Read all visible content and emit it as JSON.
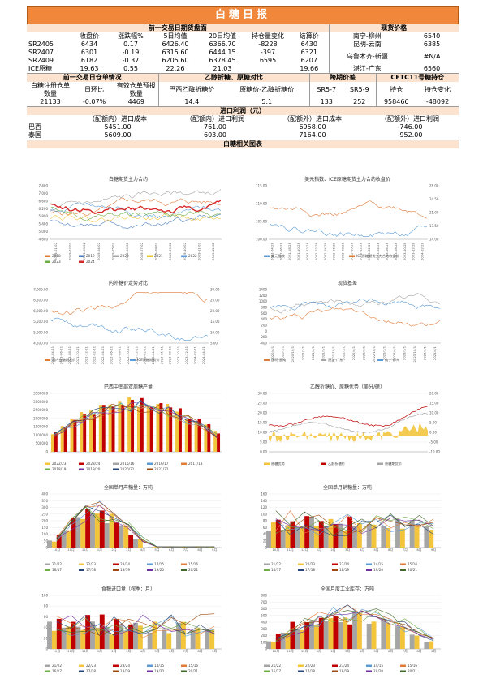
{
  "title": "白糖日报",
  "futures": {
    "header": "前一交易日期货盘面",
    "cols": [
      "收盘价",
      "涨跌幅%",
      "5日均值",
      "20日均值",
      "持仓量变化",
      "结算价"
    ],
    "rows": [
      {
        "name": "SR2405",
        "v": [
          "6434",
          "0.17",
          "6426.40",
          "6366.70",
          "-8228",
          "6430"
        ]
      },
      {
        "name": "SR2407",
        "v": [
          "6301",
          "-0.19",
          "6315.60",
          "6444.15",
          "-397",
          "6321"
        ]
      },
      {
        "name": "SR2409",
        "v": [
          "6182",
          "-0.37",
          "6205.60",
          "6378.45",
          "6595",
          "6207"
        ]
      },
      {
        "name": "ICE原糖",
        "v": [
          "19.63",
          "0.55",
          "22.26",
          "21.03",
          "",
          "19.66"
        ]
      }
    ]
  },
  "spot": {
    "header": "现货价格",
    "rows": [
      {
        "name": "南宁-柳州",
        "value": "6540"
      },
      {
        "name": "昆明-云南",
        "value": "6385"
      },
      {
        "name": "乌鲁木齐-新疆",
        "value": "#N/A"
      },
      {
        "name": "湛江-广东",
        "value": "6560"
      }
    ]
  },
  "warehouse": {
    "header": "前一交易日仓单情况",
    "cols": [
      "白糖注册仓单数量",
      "日环比",
      "有效仓单预报数量"
    ],
    "values": [
      "21133",
      "-0.07%",
      "4469"
    ]
  },
  "ethanol": {
    "header": "乙醇折糖、原糖对比",
    "cols": [
      "巴西乙醇折糖价",
      "原糖价-乙醇折糖价"
    ],
    "values": [
      "14.4",
      "5.1"
    ]
  },
  "spread": {
    "header": "跨期价差",
    "cols": [
      "SR5-7",
      "SR5-9"
    ],
    "values": [
      "133",
      "252"
    ]
  },
  "cftc": {
    "header": "CFTC11号糖持仓",
    "cols": [
      "持仓",
      "持仓变化"
    ],
    "values": [
      "958466",
      "-48092"
    ]
  },
  "import": {
    "header": "进口利润（元）",
    "cols": [
      "（配额内）进口成本",
      "（配额内）进口利润",
      "（配额外）进口成本",
      "（配额外）进口利润"
    ],
    "rows": [
      {
        "name": "巴西",
        "v": [
          "5451.00",
          "761.00",
          "6958.00",
          "-746.00"
        ]
      },
      {
        "name": "泰国",
        "v": [
          "5609.00",
          "603.00",
          "7164.00",
          "-952.00"
        ]
      }
    ]
  },
  "charts_header": "白糖相关图表",
  "chart_data": [
    {
      "type": "line",
      "title": "白糖期货主力合约",
      "ylim": [
        4600,
        7400
      ],
      "yticks": [
        "7,400",
        "7,000",
        "6,600",
        "6,200",
        "5,800",
        "5,400",
        "5,000",
        "4,600"
      ],
      "xticks": [
        "2019-01-02",
        "2019-02-02",
        "2019-03-02",
        "2019-04-02",
        "2019-05-02",
        "2019-06-02",
        "2019-07-02",
        "2019-08-02",
        "2019-09-02",
        "2019-10-02",
        "2019-11-02",
        "2019-12-02"
      ],
      "legend": [
        "2018",
        "2019",
        "2020",
        "2021",
        "2022",
        "2023",
        "2024"
      ],
      "colors": [
        "#e07b39",
        "#4e7fc0",
        "#a5a5a5",
        "#f2c53d",
        "#5b9bd5",
        "#70ad47",
        "#d62728"
      ]
    },
    {
      "type": "line",
      "title": "美元指数、ICE原糖期货主力合约收盘价",
      "yticks_left": [
        "115.00",
        "110.00",
        "105.00",
        "100.00"
      ],
      "yticks_right": [
        "28.00",
        "24.50",
        "21.00",
        "17.50",
        "14.00"
      ],
      "xticks": [
        "2021-04-28",
        "2021-06-28",
        "2021-08-28",
        "2021-10-28",
        "2021-12-28",
        "2022-02-28",
        "2022-04-28",
        "2022-06-28",
        "2022-08-28",
        "2022-10-28",
        "2022-12-28",
        "2023-02-28",
        "2023-04-28",
        "2023-06-28",
        "2023-08-28",
        "2023-10-28",
        "2023-12-28",
        "2024-02-28"
      ],
      "legend": [
        "美元指数",
        "ICE原糖期货主力合约收盘价"
      ],
      "colors": [
        "#5b9bd5",
        "#e07b39"
      ]
    },
    {
      "type": "line",
      "title": "内外糖价走势对比",
      "yticks_left": [
        "7,000.00",
        "6,500.00",
        "6,000.00",
        "5,500.00",
        "5,000.00",
        "4,500.00"
      ],
      "yticks_right": [
        "30.00",
        "25.00",
        "20.00",
        "15.00",
        "10.00",
        "5.00"
      ],
      "xticks": [
        "2021-04-21",
        "2021-06-21",
        "2021-08-21",
        "2021-10-21",
        "2021-12-21",
        "2022-02-21",
        "2022-04-21",
        "2022-06-21",
        "2022-08-21",
        "2022-10-21",
        "2022-12-21",
        "2023-02-21",
        "2023-04-21",
        "2023-06-21",
        "2023-08-21",
        "2023-10-21",
        "2023-12-21",
        "2024-02-21",
        "2024-04-21"
      ],
      "legend": [
        "国内白糖期货价",
        "ICE原糖期货价"
      ],
      "colors": [
        "#e07b39",
        "#5b9bd5"
      ]
    },
    {
      "type": "line",
      "title": "现货基差",
      "yticks": [
        "1400",
        "1200",
        "1000",
        "800",
        "600",
        "400",
        "200",
        "0",
        "-200",
        "-400"
      ],
      "xticks": [
        "2020/4/1",
        "2020/7/1",
        "2020/10/1",
        "2021/1/1",
        "2021/4/1",
        "2021/7/1",
        "2021/10/1",
        "2022/1/1",
        "2022/4/1",
        "2022/7/1",
        "2022/10/1",
        "2023/1/1",
        "2023/4/1",
        "2023/7/1",
        "2023/10/1",
        "2024/1/1",
        "2024/4/1"
      ],
      "legend": [
        "昆明-云南",
        "湛江-广东",
        "南宁-柳州"
      ],
      "colors": [
        "#e07b39",
        "#a5a5a5",
        "#5b9bd5"
      ]
    },
    {
      "type": "bar",
      "title": "巴西中南部双周糖产量",
      "yticks": [
        "3500000",
        "3000000",
        "2500000",
        "2000000",
        "1500000",
        "1000000",
        "500000",
        "0"
      ],
      "legend": [
        "2022/23",
        "2023/24",
        "2015/16",
        "2016/17",
        "2017/18",
        "2018/19",
        "2019/20",
        "2020/21",
        "2021/22"
      ],
      "colors": [
        "#f2c53d",
        "#c00000",
        "#a5a5a5",
        "#5b9bd5",
        "#e07b39",
        "#70ad47",
        "#7030a0",
        "#264478",
        "#9e480e"
      ]
    },
    {
      "type": "area",
      "title": "乙醇折糖价、原糖优势（美分/磅）",
      "yticks_left": [
        "30.00",
        "25.00",
        "20.00",
        "15.00",
        "10.00",
        "5.00",
        "0.00"
      ],
      "yticks_right": [
        "20.00",
        "15.00",
        "10.00",
        "5.00",
        "0.00",
        "-5.00",
        "-10.00"
      ],
      "legend": [
        "原糖优势",
        "乙醇折糖价",
        "原糖期货价"
      ],
      "colors": [
        "#f2c53d",
        "#c00000",
        "#a5a5a5"
      ]
    },
    {
      "type": "line",
      "title": "全国单月产糖量：万吨",
      "ylim": [
        0,
        400
      ],
      "yticks": [
        "400",
        "350",
        "300",
        "250",
        "200",
        "150",
        "100",
        "50",
        "0"
      ],
      "xticks": [
        "10月",
        "11月",
        "12月",
        "1月",
        "2月",
        "3月",
        "4月",
        "5月",
        "6月",
        "7月",
        "8月",
        "9月"
      ],
      "legend": [
        "21/22",
        "22/23",
        "23/24",
        "14/15",
        "15/16",
        "16/17",
        "17/18",
        "18/19",
        "19/20",
        "20/21"
      ]
    },
    {
      "type": "line",
      "title": "全国单月销糖量：万吨",
      "ylim": [
        0,
        160
      ],
      "yticks": [
        "160",
        "140",
        "120",
        "100",
        "80",
        "60",
        "40",
        "20",
        "0"
      ],
      "xticks": [
        "10月",
        "11月",
        "12月",
        "1月",
        "2月",
        "3月",
        "4月",
        "5月",
        "6月",
        "7月",
        "8月",
        "9月"
      ],
      "legend": [
        "21/22",
        "22/23",
        "23/24",
        "14/15",
        "15/16",
        "16/17",
        "17/18",
        "18/19",
        "19/20",
        "20/21"
      ]
    },
    {
      "type": "line",
      "title": "食糖进口量（榨季：月）",
      "ylim": [
        0,
        100
      ],
      "yticks": [
        "100",
        "80",
        "60",
        "40",
        "20",
        "0"
      ],
      "xticks": [
        "10月",
        "11月",
        "12月",
        "1月",
        "2月",
        "3月",
        "4月",
        "5月",
        "6月",
        "7月",
        "8月",
        "9月"
      ],
      "legend": [
        "21/22",
        "22/23",
        "23/24",
        "14/15",
        "15/16",
        "16/17",
        "17/18",
        "18/19",
        "19/20",
        "20/21"
      ]
    },
    {
      "type": "line",
      "title": "全国月度工业库存：万吨",
      "ylim": [
        0,
        800
      ],
      "yticks": [
        "800",
        "700",
        "600",
        "500",
        "400",
        "300",
        "200",
        "100",
        "0"
      ],
      "xticks": [
        "10月",
        "11月",
        "12月",
        "1月",
        "2月",
        "3月",
        "4月",
        "5月",
        "6月",
        "7月",
        "8月",
        "9月"
      ],
      "legend": [
        "21/22",
        "22/23",
        "23/24",
        "14/15",
        "15/16",
        "16/17",
        "17/18",
        "18/19",
        "19/20",
        "20/21"
      ]
    }
  ]
}
